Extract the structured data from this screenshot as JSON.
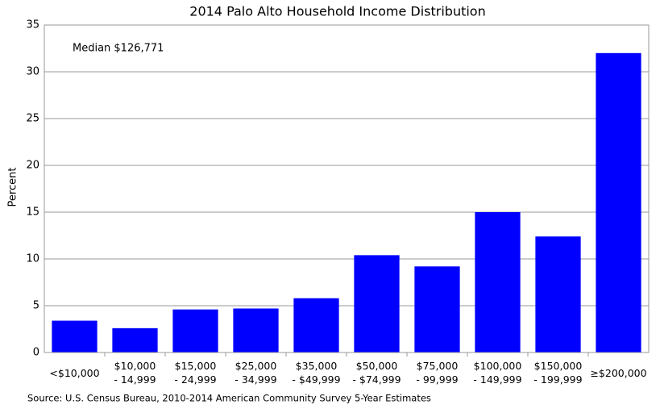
{
  "chart_data": {
    "type": "bar",
    "title": "2014 Palo Alto Household Income Distribution",
    "y_label": "Percent",
    "annotation": "Median $126,771",
    "source": "Source: U.S. Census Bureau, 2010-2014 American Community Survey 5-Year Estimates",
    "categories": [
      "<$10,000",
      "$10,000\n- 14,999",
      "$15,000\n- 24,999",
      "$25,000\n- 34,999",
      "$35,000\n- $49,999",
      "$50,000\n- $74,999",
      "$75,000\n- 99,999",
      "$100,000\n- 149,999",
      "$150,000\n- 199,999",
      "≥$200,000"
    ],
    "values": [
      3.4,
      2.6,
      4.6,
      4.7,
      5.8,
      10.4,
      9.2,
      15.0,
      12.4,
      32.0
    ],
    "color": "#0000ff",
    "ylim": [
      0,
      35
    ],
    "yticks": [
      0,
      5,
      10,
      15,
      20,
      25,
      30,
      35
    ],
    "grid": true
  }
}
